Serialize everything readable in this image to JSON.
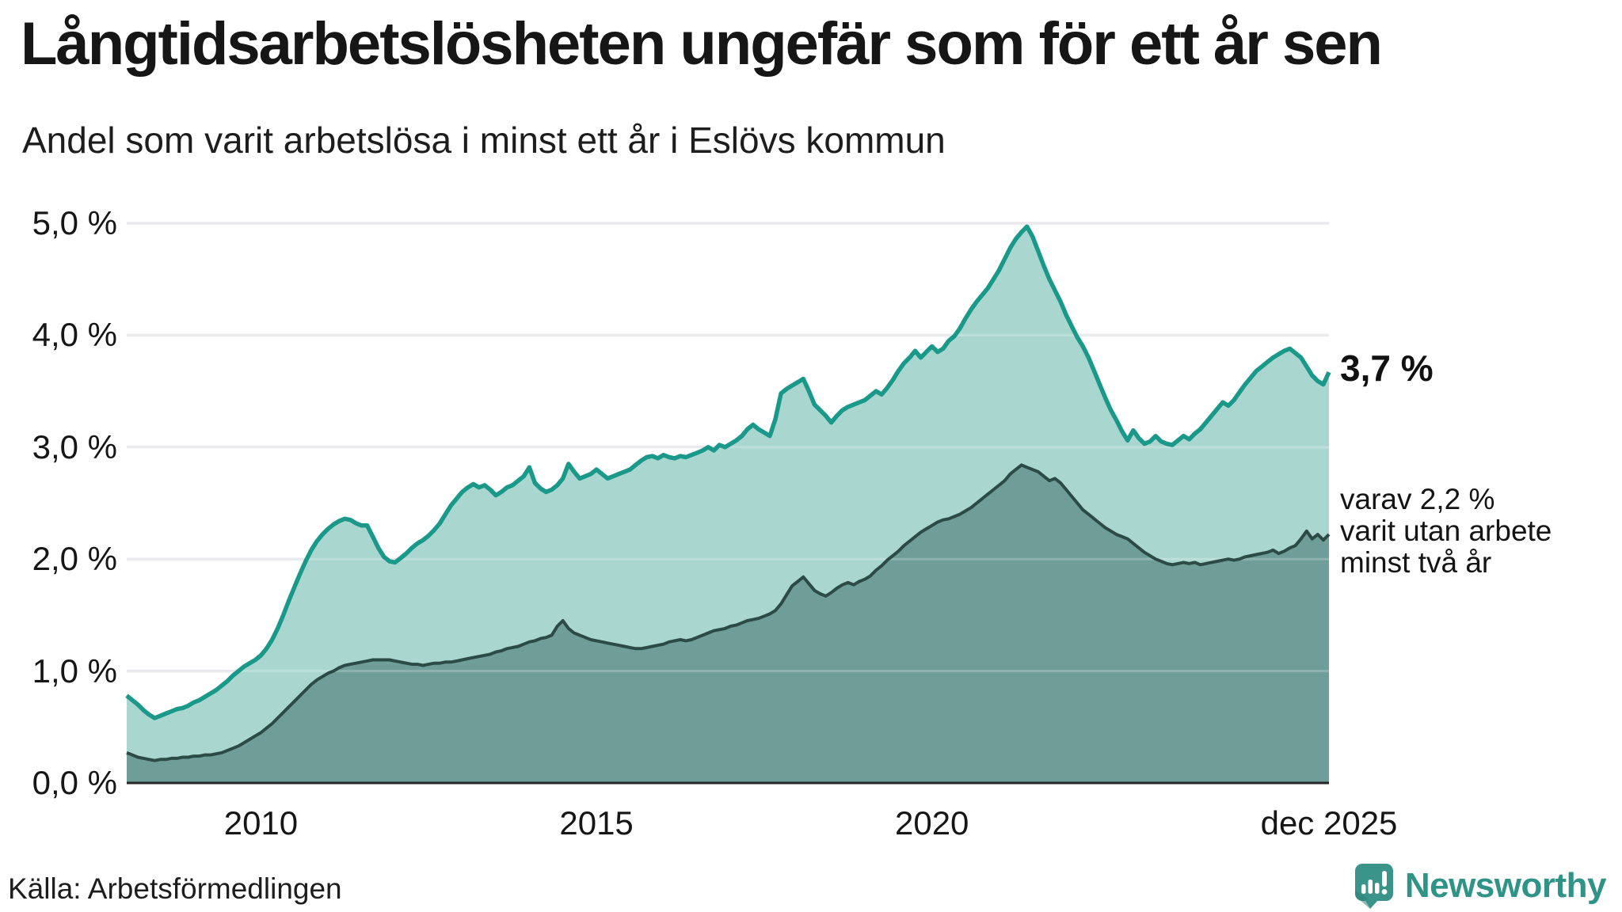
{
  "header": {
    "title": "Långtidsarbetslösheten ungefär som för ett år sen",
    "subtitle": "Andel som varit arbetslösa i minst ett år i Eslövs kommun"
  },
  "annotations": {
    "latest_total": "3,7 %",
    "secondary_lines": [
      "varav 2,2 %",
      "varit utan arbete",
      "minst två år"
    ]
  },
  "footer": {
    "source": "Källa: Arbetsförmedlingen",
    "branding_name": "Newsworthy",
    "branding_icon": "speech-bubble-bar-chart-icon"
  },
  "colors": {
    "background": "#ffffff",
    "title_text": "#161616",
    "gridline": "#e6e6ea",
    "axis_line": "#262626",
    "series1_line": "#1a998b",
    "series1_fill": "#a9d6cf",
    "series2_line": "#2d4b46",
    "series2_fill": "#6f9e98",
    "branding_teal": "#2f9387"
  },
  "chart_data": {
    "type": "area",
    "title": "Långtidsarbetslösheten ungefär som för ett år sen",
    "subtitle": "Andel som varit arbetslösa i minst ett år i Eslövs kommun",
    "xlabel": "",
    "ylabel": "",
    "unit": "%",
    "grid": "horizontal",
    "legend_position": "none",
    "x_start": "2008-01",
    "x_end": "2025-12",
    "x_frequency": "monthly",
    "ylim": [
      0,
      5.23
    ],
    "y_ticks": [
      {
        "value": 0,
        "label": "0,0 %"
      },
      {
        "value": 1,
        "label": "1,0 %"
      },
      {
        "value": 2,
        "label": "2,0 %"
      },
      {
        "value": 3,
        "label": "3,0 %"
      },
      {
        "value": 4,
        "label": "4,0 %"
      },
      {
        "value": 5,
        "label": "5,0 %"
      }
    ],
    "x_ticks": [
      {
        "month_index": 24,
        "label": "2010"
      },
      {
        "month_index": 84,
        "label": "2015"
      },
      {
        "month_index": 144,
        "label": "2020"
      },
      {
        "month_index": 215,
        "label": "dec 2025"
      }
    ],
    "series": [
      {
        "name": "Andel arbetslösa minst ett år",
        "line_color": "#1a998b",
        "fill_color": "#a9d6cf",
        "line_width": 5.5,
        "latest_value_label": "3,7 %",
        "values": [
          0.78,
          0.74,
          0.7,
          0.65,
          0.61,
          0.58,
          0.6,
          0.62,
          0.64,
          0.66,
          0.67,
          0.69,
          0.72,
          0.74,
          0.77,
          0.8,
          0.83,
          0.87,
          0.91,
          0.96,
          1.0,
          1.04,
          1.07,
          1.1,
          1.14,
          1.2,
          1.28,
          1.38,
          1.5,
          1.63,
          1.75,
          1.87,
          1.98,
          2.08,
          2.16,
          2.22,
          2.27,
          2.31,
          2.34,
          2.36,
          2.35,
          2.32,
          2.3,
          2.3,
          2.2,
          2.1,
          2.02,
          1.98,
          1.97,
          2.01,
          2.05,
          2.1,
          2.14,
          2.17,
          2.21,
          2.26,
          2.32,
          2.4,
          2.48,
          2.54,
          2.6,
          2.64,
          2.67,
          2.64,
          2.66,
          2.62,
          2.57,
          2.6,
          2.64,
          2.66,
          2.7,
          2.74,
          2.82,
          2.68,
          2.63,
          2.6,
          2.62,
          2.66,
          2.72,
          2.85,
          2.78,
          2.72,
          2.74,
          2.76,
          2.8,
          2.76,
          2.72,
          2.74,
          2.76,
          2.78,
          2.8,
          2.84,
          2.88,
          2.91,
          2.92,
          2.9,
          2.93,
          2.91,
          2.9,
          2.92,
          2.91,
          2.93,
          2.95,
          2.97,
          3.0,
          2.97,
          3.02,
          3.0,
          3.03,
          3.06,
          3.1,
          3.16,
          3.2,
          3.16,
          3.13,
          3.1,
          3.25,
          3.48,
          3.52,
          3.55,
          3.58,
          3.61,
          3.5,
          3.38,
          3.33,
          3.28,
          3.22,
          3.28,
          3.33,
          3.36,
          3.38,
          3.4,
          3.42,
          3.46,
          3.5,
          3.47,
          3.53,
          3.6,
          3.68,
          3.75,
          3.8,
          3.86,
          3.8,
          3.85,
          3.9,
          3.85,
          3.88,
          3.95,
          3.99,
          4.06,
          4.15,
          4.23,
          4.3,
          4.36,
          4.42,
          4.5,
          4.58,
          4.68,
          4.78,
          4.86,
          4.92,
          4.97,
          4.88,
          4.75,
          4.62,
          4.5,
          4.4,
          4.3,
          4.18,
          4.08,
          3.98,
          3.9,
          3.8,
          3.68,
          3.56,
          3.44,
          3.33,
          3.24,
          3.14,
          3.06,
          3.15,
          3.08,
          3.03,
          3.05,
          3.1,
          3.05,
          3.03,
          3.02,
          3.06,
          3.1,
          3.07,
          3.12,
          3.16,
          3.22,
          3.28,
          3.34,
          3.4,
          3.37,
          3.42,
          3.49,
          3.56,
          3.62,
          3.68,
          3.72,
          3.76,
          3.8,
          3.83,
          3.86,
          3.88,
          3.84,
          3.8,
          3.72,
          3.64,
          3.59,
          3.56,
          3.67
        ]
      },
      {
        "name": "varav arbetslösa minst två år",
        "line_color": "#2d4b46",
        "fill_color": "#6f9e98",
        "line_width": 4,
        "latest_value_label": "2,2 %",
        "values": [
          0.27,
          0.25,
          0.23,
          0.22,
          0.21,
          0.2,
          0.21,
          0.21,
          0.22,
          0.22,
          0.23,
          0.23,
          0.24,
          0.24,
          0.25,
          0.25,
          0.26,
          0.27,
          0.29,
          0.31,
          0.33,
          0.36,
          0.39,
          0.42,
          0.45,
          0.49,
          0.53,
          0.58,
          0.63,
          0.68,
          0.73,
          0.78,
          0.83,
          0.88,
          0.92,
          0.95,
          0.98,
          1.0,
          1.03,
          1.05,
          1.06,
          1.07,
          1.08,
          1.09,
          1.1,
          1.1,
          1.1,
          1.1,
          1.09,
          1.08,
          1.07,
          1.06,
          1.06,
          1.05,
          1.06,
          1.07,
          1.07,
          1.08,
          1.08,
          1.09,
          1.1,
          1.11,
          1.12,
          1.13,
          1.14,
          1.15,
          1.17,
          1.18,
          1.2,
          1.21,
          1.22,
          1.24,
          1.26,
          1.27,
          1.29,
          1.3,
          1.32,
          1.4,
          1.45,
          1.38,
          1.34,
          1.32,
          1.3,
          1.28,
          1.27,
          1.26,
          1.25,
          1.24,
          1.23,
          1.22,
          1.21,
          1.2,
          1.2,
          1.21,
          1.22,
          1.23,
          1.24,
          1.26,
          1.27,
          1.28,
          1.27,
          1.28,
          1.3,
          1.32,
          1.34,
          1.36,
          1.37,
          1.38,
          1.4,
          1.41,
          1.43,
          1.45,
          1.46,
          1.47,
          1.49,
          1.51,
          1.54,
          1.6,
          1.68,
          1.76,
          1.8,
          1.84,
          1.78,
          1.72,
          1.69,
          1.67,
          1.7,
          1.74,
          1.77,
          1.79,
          1.77,
          1.8,
          1.82,
          1.85,
          1.9,
          1.94,
          1.99,
          2.03,
          2.07,
          2.12,
          2.16,
          2.2,
          2.24,
          2.27,
          2.3,
          2.33,
          2.35,
          2.36,
          2.38,
          2.4,
          2.43,
          2.46,
          2.5,
          2.54,
          2.58,
          2.62,
          2.66,
          2.7,
          2.76,
          2.8,
          2.84,
          2.82,
          2.8,
          2.78,
          2.74,
          2.7,
          2.72,
          2.68,
          2.62,
          2.56,
          2.5,
          2.44,
          2.4,
          2.36,
          2.32,
          2.28,
          2.25,
          2.22,
          2.2,
          2.18,
          2.14,
          2.1,
          2.06,
          2.03,
          2.0,
          1.98,
          1.96,
          1.95,
          1.96,
          1.97,
          1.96,
          1.97,
          1.95,
          1.96,
          1.97,
          1.98,
          1.99,
          2.0,
          1.99,
          2.0,
          2.02,
          2.03,
          2.04,
          2.05,
          2.06,
          2.08,
          2.05,
          2.07,
          2.1,
          2.12,
          2.18,
          2.25,
          2.18,
          2.22,
          2.17,
          2.22
        ]
      }
    ]
  }
}
